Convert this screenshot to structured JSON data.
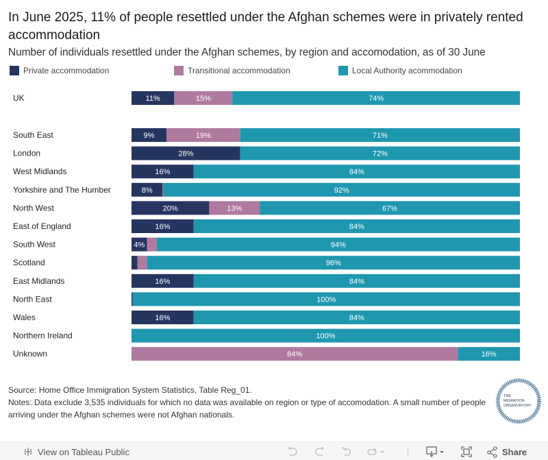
{
  "header": {
    "title": "In June 2025, 11% of people resettled under the Afghan schemes were in privately rented accommodation",
    "subtitle": "Number of individuals resettled under the Afghan schemes, by region and accomodation, as of 30 June"
  },
  "colors": {
    "private": "#263560",
    "transitional": "#b07a9f",
    "local_authority": "#1f97af"
  },
  "chart_data": {
    "type": "bar",
    "orientation": "horizontal",
    "stacked": true,
    "normalized": true,
    "title": "In June 2025, 11% of people resettled under the Afghan schemes were in privately rented accommodation",
    "subtitle": "Number of individuals resettled under the Afghan schemes, by region and accomodation, as of 30 June",
    "xlabel": "",
    "ylabel": "",
    "xlim": [
      0,
      100
    ],
    "grid": false,
    "legend_position": "top",
    "categories": [
      "UK",
      "South East",
      "London",
      "West Midlands",
      "Yorkshire and The Humber",
      "North West",
      "East of England",
      "South West",
      "Scotland",
      "East Midlands",
      "North East",
      "Wales",
      "Northern Ireland",
      "Unknown"
    ],
    "series": [
      {
        "name": "Private accommodation",
        "values": [
          11,
          9,
          28,
          16,
          8,
          20,
          16,
          4,
          1.5,
          16,
          0.3,
          16,
          0,
          0
        ],
        "labels": [
          "11%",
          "9%",
          "28%",
          "16%",
          "8%",
          "20%",
          "16%",
          "4%",
          "",
          "16%",
          "",
          "16%",
          "",
          ""
        ]
      },
      {
        "name": "Transitional accommodation",
        "values": [
          15,
          19,
          0,
          0,
          0.2,
          13,
          0,
          2.5,
          2.5,
          0,
          0,
          0,
          0,
          84
        ],
        "labels": [
          "15%",
          "19%",
          "",
          "",
          "",
          "13%",
          "",
          "",
          "",
          "",
          "",
          "",
          "",
          "84%"
        ]
      },
      {
        "name": "Local Authority acommodation",
        "values": [
          74,
          71,
          72,
          84,
          92,
          67,
          84,
          94,
          96,
          84,
          100,
          84,
          100,
          16
        ],
        "labels": [
          "74%",
          "71%",
          "72%",
          "84%",
          "92%",
          "67%",
          "84%",
          "94%",
          "96%",
          "84%",
          "100%",
          "84%",
          "100%",
          "16%"
        ]
      }
    ]
  },
  "legend": [
    {
      "label": "Private accommodation",
      "key": "private"
    },
    {
      "label": "Transitional accommodation",
      "key": "transitional"
    },
    {
      "label": "Local Authority acommodation",
      "key": "local_authority"
    }
  ],
  "footer": {
    "source": "Source: Home Office Immigration System Statistics, Table Reg_01.",
    "notes": "Notes: Data exclude 3,535 individuals for which no data was available on region or type of accomodation. A small number of people arriving under the Afghan schemes were not Afghan nationals.",
    "logo_lines": [
      "THE",
      "MIGRATION",
      "OBSERVATORY"
    ]
  },
  "toolbar": {
    "view_label": "View on Tableau Public",
    "share_label": "Share",
    "icons": [
      "tableau-icon",
      "undo-icon",
      "redo-icon",
      "revert-icon",
      "refresh-icon",
      "download-icon",
      "fullscreen-icon",
      "share-icon"
    ]
  }
}
